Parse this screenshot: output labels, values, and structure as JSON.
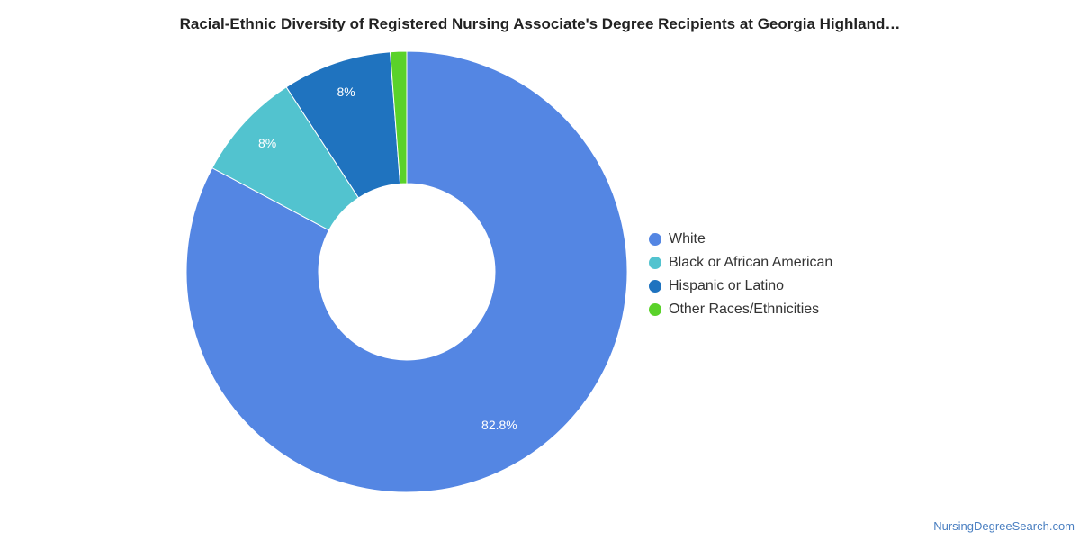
{
  "title": "Racial-Ethnic Diversity of Registered Nursing Associate's Degree Recipients at Georgia Highland…",
  "source": "NursingDegreeSearch.com",
  "chart_data": {
    "type": "pie",
    "variant": "donut",
    "title": "Racial-Ethnic Diversity of Registered Nursing Associate's Degree Recipients at Georgia Highland…",
    "legend_position": "right",
    "slices": [
      {
        "name": "White",
        "value": 82.8,
        "label": "82.8%",
        "color": "#5486e3"
      },
      {
        "name": "Black or African American",
        "value": 8,
        "label": "8%",
        "color": "#52c3cf"
      },
      {
        "name": "Hispanic or Latino",
        "value": 8,
        "label": "8%",
        "color": "#1f73bf"
      },
      {
        "name": "Other Races/Ethnicities",
        "value": 1.2,
        "label": "",
        "color": "#5ad22a"
      }
    ]
  }
}
